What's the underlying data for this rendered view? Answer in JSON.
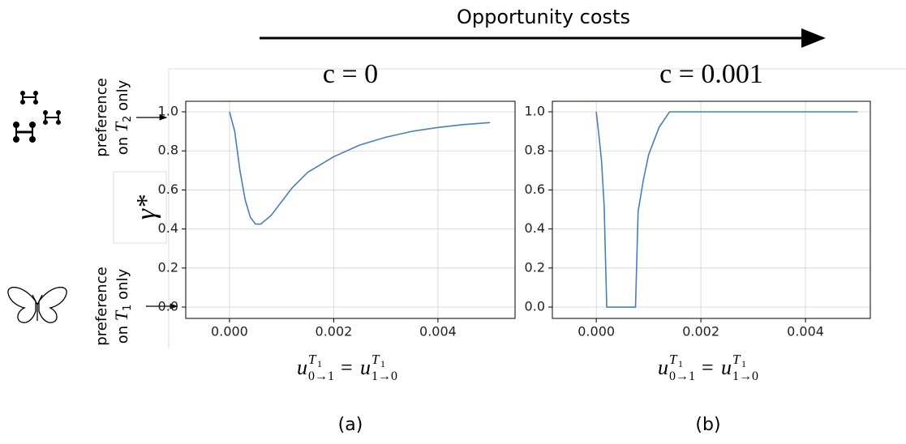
{
  "header": {
    "title": "Opportunity costs"
  },
  "annotations": {
    "top_label": [
      "preference",
      "on ",
      "T",
      "2",
      " only"
    ],
    "bottom_label": [
      "preference",
      "on ",
      "T",
      "1",
      " only"
    ],
    "gamma": "γ*"
  },
  "chart_data": [
    {
      "type": "line",
      "title": "c = 0",
      "caption": "(a)",
      "xlabel": [
        "u",
        "T",
        "1",
        "0→1",
        "=",
        "u",
        "T",
        "1",
        "1→0"
      ],
      "x": [
        0,
        0.0001,
        0.0002,
        0.0003,
        0.0004,
        0.0005,
        0.0006,
        0.0008,
        0.001,
        0.0012,
        0.0015,
        0.002,
        0.0025,
        0.003,
        0.0035,
        0.004,
        0.0045,
        0.005
      ],
      "values": [
        1.0,
        0.9,
        0.7,
        0.55,
        0.46,
        0.425,
        0.425,
        0.47,
        0.54,
        0.61,
        0.69,
        0.77,
        0.83,
        0.87,
        0.9,
        0.92,
        0.935,
        0.945
      ],
      "color": "#4a7ebb",
      "xlim": [
        -0.00084,
        0.00548
      ],
      "ylim": [
        -0.058,
        1.054
      ],
      "xticks": [
        {
          "value": 0,
          "label": "0.000"
        },
        {
          "value": 0.002,
          "label": "0.002"
        },
        {
          "value": 0.004,
          "label": "0.004"
        }
      ],
      "yticks": [
        {
          "value": 0,
          "label": "0.0"
        },
        0.2,
        0.4,
        0.6,
        0.8,
        {
          "value": 1,
          "label": "1.0"
        }
      ],
      "grid": true
    },
    {
      "type": "line",
      "title": "c = 0.001",
      "caption": "(b)",
      "xlabel": [
        "u",
        "T",
        "1",
        "0→1",
        "=",
        "u",
        "T",
        "1",
        "1→0"
      ],
      "x": [
        0,
        5e-05,
        0.0001,
        0.00015,
        0.0002,
        0.00075,
        0.0008,
        0.0009,
        0.001,
        0.0012,
        0.0014,
        0.005
      ],
      "values": [
        1.0,
        0.88,
        0.75,
        0.52,
        0.0,
        0.0,
        0.49,
        0.65,
        0.78,
        0.92,
        1.0,
        1.0
      ],
      "color": "#4a7ebb",
      "xlim": [
        -0.00084,
        0.00524
      ],
      "ylim": [
        -0.058,
        1.054
      ],
      "xticks": [
        {
          "value": 0,
          "label": "0.000"
        },
        {
          "value": 0.002,
          "label": "0.002"
        },
        {
          "value": 0.004,
          "label": "0.004"
        }
      ],
      "yticks": [
        {
          "value": 0,
          "label": "0.0"
        },
        0.2,
        0.4,
        0.6,
        0.8,
        {
          "value": 1,
          "label": "1.0"
        }
      ],
      "grid": true
    }
  ]
}
